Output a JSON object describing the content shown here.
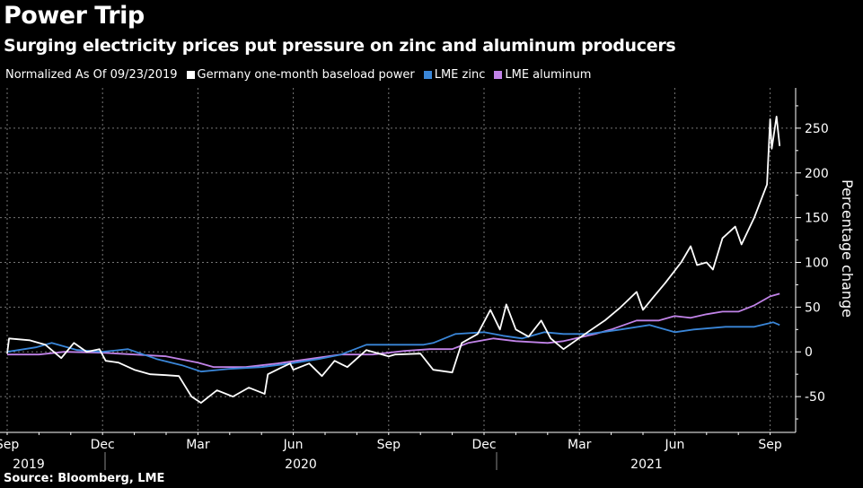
{
  "chart_data": {
    "type": "line",
    "title": "Power Trip",
    "subtitle": "Surging electricity prices put pressure on zinc and aluminum producers",
    "legend_note": "Normalized As Of 09/23/2019",
    "ylabel": "Percentage change",
    "xlabel": "",
    "x_unit": "months since 2019-09-23",
    "ylim": [
      -90,
      295
    ],
    "yticks": [
      -50,
      0,
      50,
      100,
      150,
      200,
      250
    ],
    "xticks": [
      {
        "m": 0,
        "label": "Sep"
      },
      {
        "m": 3,
        "label": "Dec"
      },
      {
        "m": 6,
        "label": "Mar"
      },
      {
        "m": 9,
        "label": "Jun"
      },
      {
        "m": 12,
        "label": "Sep"
      },
      {
        "m": 15,
        "label": "Dec"
      },
      {
        "m": 18,
        "label": "Mar"
      },
      {
        "m": 21,
        "label": "Jun"
      },
      {
        "m": 24,
        "label": "Sep"
      }
    ],
    "years": [
      "2019",
      "2020",
      "2021"
    ],
    "grid": true,
    "legend_position": "top-left",
    "series": [
      {
        "name": "Germany one-month baseload power",
        "color": "#ffffff",
        "x": [
          0,
          0.06,
          0.7,
          1.2,
          1.7,
          2.1,
          2.5,
          2.9,
          3.1,
          3.5,
          4.0,
          4.5,
          5.0,
          5.4,
          5.8,
          6.1,
          6.6,
          7.1,
          7.6,
          8.1,
          8.2,
          8.6,
          8.9,
          9.0,
          9.5,
          9.9,
          10.3,
          10.7,
          11.3,
          12.0,
          12.2,
          13.0,
          13.4,
          14.0,
          14.3,
          14.8,
          15.2,
          15.5,
          15.7,
          16.0,
          16.4,
          16.8,
          17.1,
          17.5,
          18.3,
          18.8,
          19.3,
          19.8,
          20.0,
          20.3,
          20.7,
          21.2,
          21.5,
          21.7,
          22.0,
          22.2,
          22.5,
          22.9,
          23.1,
          23.5,
          23.9,
          24.0,
          24.05,
          24.2,
          24.3
        ],
        "values": [
          -2,
          15,
          13,
          8,
          -7,
          10,
          0,
          3,
          -10,
          -12,
          -20,
          -25,
          -26,
          -27,
          -50,
          -57,
          -43,
          -50,
          -40,
          -47,
          -25,
          -18,
          -13,
          -20,
          -13,
          -27,
          -10,
          -17,
          2,
          -5,
          -3,
          -2,
          -20,
          -23,
          10,
          20,
          47,
          25,
          53,
          25,
          17,
          35,
          15,
          3,
          23,
          35,
          50,
          67,
          47,
          60,
          77,
          100,
          118,
          97,
          100,
          92,
          127,
          140,
          120,
          150,
          187,
          260,
          227,
          263,
          230
        ]
      },
      {
        "name": "LME zinc",
        "color": "#3a86d8",
        "x": [
          0,
          0.9,
          1.4,
          2.2,
          3.0,
          3.8,
          4.7,
          5.5,
          6.1,
          7.0,
          8.0,
          8.9,
          9.8,
          10.5,
          11.3,
          12.2,
          13.1,
          13.4,
          14.1,
          15.0,
          15.6,
          16.2,
          16.9,
          17.5,
          18.3,
          19.3,
          20.2,
          21.0,
          21.6,
          22.6,
          23.5,
          24.1,
          24.3
        ],
        "values": [
          0,
          5,
          10,
          2,
          0,
          3,
          -8,
          -15,
          -22,
          -19,
          -17,
          -13,
          -8,
          -3,
          8,
          8,
          8,
          10,
          20,
          22,
          18,
          15,
          22,
          20,
          20,
          25,
          30,
          22,
          25,
          28,
          28,
          33,
          30
        ]
      },
      {
        "name": "LME aluminum",
        "color": "#c183e8",
        "x": [
          0,
          1.0,
          1.8,
          3.0,
          4.0,
          5.0,
          6.0,
          6.5,
          7.5,
          8.5,
          9.5,
          10.5,
          11.5,
          12.5,
          13.3,
          14.0,
          14.5,
          15.3,
          16.0,
          17.0,
          17.5,
          18.5,
          19.0,
          19.8,
          20.5,
          21.0,
          21.5,
          22.0,
          22.5,
          23.0,
          23.5,
          24.0,
          24.3
        ],
        "values": [
          -3,
          -3,
          0,
          -1,
          -3,
          -5,
          -12,
          -17,
          -17,
          -13,
          -8,
          -3,
          -3,
          1,
          3,
          3,
          10,
          15,
          12,
          10,
          12,
          20,
          25,
          35,
          35,
          40,
          38,
          42,
          45,
          45,
          52,
          62,
          65
        ]
      }
    ]
  }
}
